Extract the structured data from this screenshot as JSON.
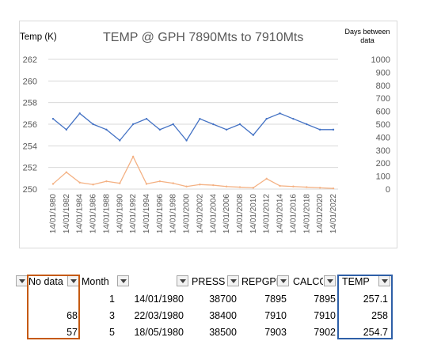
{
  "chart": {
    "title": "TEMP @ GPH 7890Mts to 7910Mts",
    "left_axis_label": "Temp (K)",
    "right_axis_label": "Days between data",
    "left_ticks": [
      "262",
      "260",
      "258",
      "256",
      "254",
      "252",
      "250"
    ],
    "right_ticks": [
      "1000",
      "900",
      "800",
      "700",
      "600",
      "500",
      "400",
      "300",
      "200",
      "100",
      "0"
    ],
    "x_ticks": [
      "14/01/1980",
      "14/01/1982",
      "14/01/1984",
      "14/01/1986",
      "14/01/1988",
      "14/01/1990",
      "14/01/1992",
      "14/01/1994",
      "14/01/1996",
      "14/01/1998",
      "14/01/2000",
      "14/01/2002",
      "14/01/2004",
      "14/01/2006",
      "14/01/2008",
      "14/01/2010",
      "14/01/2012",
      "14/01/2014",
      "14/01/2016",
      "14/01/2018",
      "14/01/2020",
      "14/01/2022"
    ],
    "colors": {
      "temp_line": "#4472c4",
      "days_line": "#f4b183",
      "gridline": "#d9d9d9"
    }
  },
  "chart_data": {
    "type": "line",
    "x": [
      "14/01/1980",
      "14/01/1982",
      "14/01/1984",
      "14/01/1986",
      "14/01/1988",
      "14/01/1990",
      "14/01/1992",
      "14/01/1994",
      "14/01/1996",
      "14/01/1998",
      "14/01/2000",
      "14/01/2002",
      "14/01/2004",
      "14/01/2006",
      "14/01/2008",
      "14/01/2010",
      "14/01/2012",
      "14/01/2014",
      "14/01/2016",
      "14/01/2018",
      "14/01/2020",
      "14/01/2022"
    ],
    "series": [
      {
        "axis": "left",
        "values": [
          256.5,
          255.5,
          257.0,
          256.0,
          255.5,
          254.5,
          256.0,
          256.5,
          255.5,
          256.0,
          254.5,
          256.5,
          256.0,
          255.5,
          256.0,
          255.0,
          256.5,
          257.0,
          256.5,
          256.0,
          255.5,
          255.5
        ]
      },
      {
        "axis": "right",
        "values": [
          40,
          130,
          50,
          35,
          60,
          45,
          250,
          40,
          60,
          45,
          20,
          35,
          30,
          20,
          15,
          10,
          80,
          25,
          20,
          15,
          10,
          5
        ]
      }
    ],
    "ylim_left": [
      250,
      262
    ],
    "ylim_right": [
      0,
      1000
    ]
  },
  "table": {
    "headers": [
      {
        "label": "",
        "name": "col-a"
      },
      {
        "label": "No data",
        "name": "col-no-data"
      },
      {
        "label": "Month",
        "name": "col-month"
      },
      {
        "label": "",
        "name": "col-date"
      },
      {
        "label": "PRESS",
        "name": "col-press"
      },
      {
        "label": "REPGPH",
        "name": "col-repgph"
      },
      {
        "label": "CALCGPH",
        "name": "col-calcgph"
      },
      {
        "label": "TEMP",
        "name": "col-temp"
      }
    ],
    "rows": [
      [
        "",
        "",
        "1",
        "14/01/1980",
        "38700",
        "7895",
        "7895",
        "257.1"
      ],
      [
        "",
        "68",
        "3",
        "22/03/1980",
        "38400",
        "7910",
        "7910",
        "258"
      ],
      [
        "",
        "57",
        "5",
        "18/05/1980",
        "38500",
        "7903",
        "7902",
        "254.7"
      ]
    ]
  }
}
